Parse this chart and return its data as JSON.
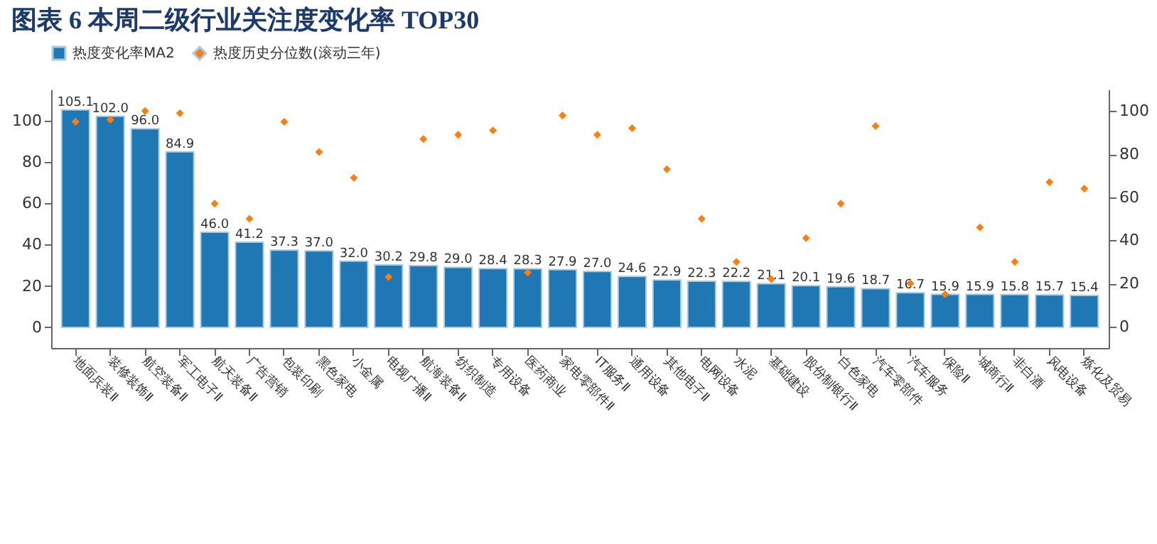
{
  "chart_data": {
    "type": "bar",
    "title": "图表 6  本周二级行业关注度变化率 TOP30",
    "categories": [
      "地面兵装Ⅱ",
      "装修装饰Ⅱ",
      "航空装备Ⅱ",
      "军工电子Ⅱ",
      "航天装备Ⅱ",
      "广告营销",
      "包装印刷",
      "黑色家电",
      "小金属",
      "电视广播Ⅱ",
      "航海装备Ⅱ",
      "纺织制造",
      "专用设备",
      "医药商业",
      "家电零部件Ⅱ",
      "IT服务Ⅱ",
      "通用设备",
      "其他电子Ⅱ",
      "电网设备",
      "水泥",
      "基础建设",
      "股份制银行Ⅱ",
      "白色家电",
      "汽车零部件",
      "汽车服务",
      "保险Ⅱ",
      "城商行Ⅱ",
      "非白酒",
      "风电设备",
      "炼化及贸易"
    ],
    "series": [
      {
        "name": "热度变化率MA2",
        "color": "#1f77b4",
        "values": [
          105.1,
          102.0,
          96.0,
          84.9,
          46.0,
          41.2,
          37.3,
          37.0,
          32.0,
          30.2,
          29.8,
          29.0,
          28.4,
          28.3,
          27.9,
          27.0,
          24.6,
          22.9,
          22.3,
          22.2,
          21.1,
          20.1,
          19.6,
          18.7,
          16.7,
          15.9,
          15.9,
          15.8,
          15.7,
          15.4
        ],
        "value_labels": [
          "105.1",
          "102.0",
          "96.0",
          "84.9",
          "46.0",
          "41.2",
          "37.3",
          "37.0",
          "32.0",
          "30.2",
          "29.8",
          "29.0",
          "28.4",
          "28.3",
          "27.9",
          "27.0",
          "24.6",
          "22.9",
          "22.3",
          "22.2",
          "21.1",
          "20.1",
          "19.6",
          "18.7",
          "16.7",
          "15.9",
          "15.9",
          "15.8",
          "15.7",
          "15.4"
        ]
      },
      {
        "name": "热度历史分位数(滚动三年)",
        "type": "scatter",
        "axis": "y2",
        "color": "#ff7f0e",
        "marker": "diamond",
        "values": [
          95,
          96,
          100,
          99,
          57,
          50,
          95,
          81,
          69,
          23,
          87,
          89,
          91,
          25,
          98,
          89,
          92,
          73,
          50,
          30,
          22,
          41,
          57,
          93,
          20,
          15,
          46,
          30,
          67,
          64
        ]
      }
    ],
    "ylim": [
      -10,
      115
    ],
    "yticks": [
      0,
      20,
      40,
      60,
      80,
      100
    ],
    "y2lim": [
      -10,
      110
    ],
    "y2ticks": [
      0,
      20,
      40,
      60,
      80,
      100
    ],
    "legend": "top",
    "grid": false
  }
}
